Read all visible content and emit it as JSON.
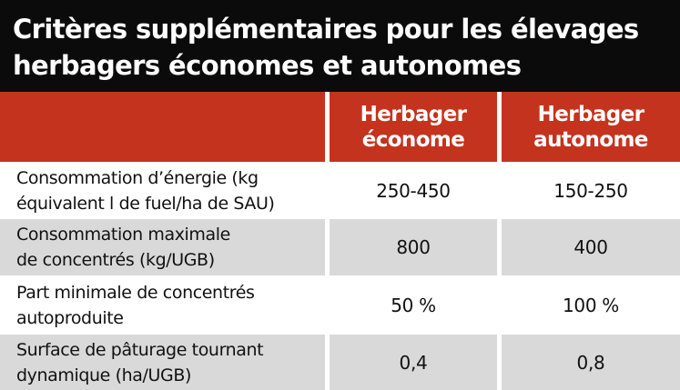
{
  "title": {
    "line1": "Critères supplémentaires pour les élevages",
    "line2": "herbagers économes et autonomes"
  },
  "columns": [
    {
      "line1": "Herbager",
      "line2": "économe"
    },
    {
      "line1": "Herbager",
      "line2": "autonome"
    }
  ],
  "rows": [
    {
      "label_line1": "Consommation d’énergie (kg",
      "label_line2": "équivalent l de fuel/ha de SAU)",
      "econome": "250-450",
      "autonome": "150-250"
    },
    {
      "label_line1": "Consommation maximale",
      "label_line2": "de concentrés (kg/UGB)",
      "econome": "800",
      "autonome": "400"
    },
    {
      "label_line1": "Part minimale de concentrés",
      "label_line2": "autoproduite",
      "econome": "50 %",
      "autonome": "100 %"
    },
    {
      "label_line1": "Surface de pâturage tournant",
      "label_line2": "dynamique (ha/UGB)",
      "econome": "0,4",
      "autonome": "0,8"
    }
  ],
  "colors": {
    "title_bg": "#0b0b0b",
    "header_bg": "#c4331e",
    "row_grey": "#d9d9d9",
    "row_white": "#ffffff"
  }
}
